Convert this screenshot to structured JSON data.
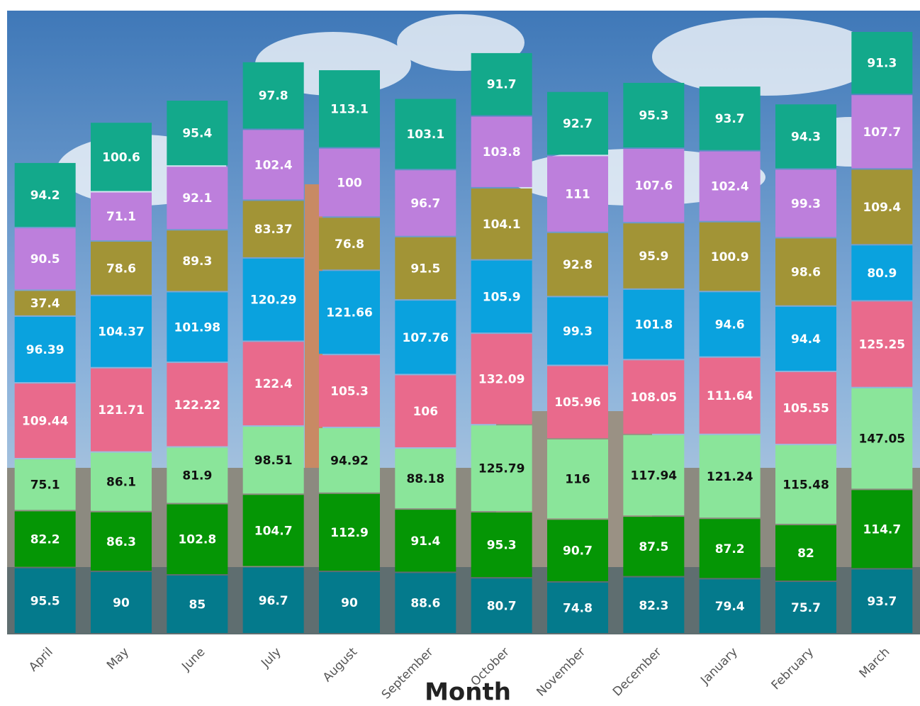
{
  "chart_data": {
    "type": "stacked-bar",
    "x_label": "Month",
    "categories": [
      "April",
      "May",
      "June",
      "July",
      "August",
      "September",
      "October",
      "November",
      "December",
      "January",
      "February",
      "March"
    ],
    "series": [
      {
        "color": "#047a8c",
        "values": [
          95.5,
          90,
          85,
          96.7,
          90,
          88.6,
          80.7,
          74.8,
          82.3,
          79.4,
          75.7,
          93.7
        ]
      },
      {
        "color": "#059605",
        "values": [
          82.2,
          86.3,
          102.8,
          104.7,
          112.9,
          91.4,
          95.3,
          90.7,
          87.5,
          87.2,
          82,
          114.7
        ]
      },
      {
        "color": "#8ae59a",
        "values": [
          75.1,
          86.1,
          81.9,
          98.51,
          94.92,
          88.18,
          125.79,
          116,
          117.94,
          121.24,
          115.48,
          147.05
        ]
      },
      {
        "color": "#e96a8c",
        "values": [
          109.44,
          121.71,
          122.22,
          122.4,
          105.3,
          106,
          132.09,
          105.96,
          108.05,
          111.64,
          105.55,
          125.25
        ]
      },
      {
        "color": "#0aa2de",
        "values": [
          96.39,
          104.37,
          101.98,
          120.29,
          121.66,
          107.76,
          105.9,
          99.3,
          101.8,
          94.6,
          94.4,
          80.9
        ]
      },
      {
        "color": "#a29436",
        "values": [
          37.4,
          78.6,
          89.3,
          83.37,
          76.8,
          91.5,
          104.1,
          92.8,
          95.9,
          100.9,
          98.6,
          109.4
        ]
      },
      {
        "color": "#bd7fdc",
        "values": [
          90.5,
          71.1,
          92.1,
          102.4,
          100,
          96.7,
          103.8,
          111,
          107.6,
          102.4,
          99.3,
          107.7
        ]
      },
      {
        "color": "#13a98b",
        "values": [
          94.2,
          100.6,
          95.4,
          97.8,
          113.1,
          103.1,
          91.7,
          92.7,
          95.3,
          93.7,
          94.3,
          91.3
        ]
      }
    ]
  }
}
